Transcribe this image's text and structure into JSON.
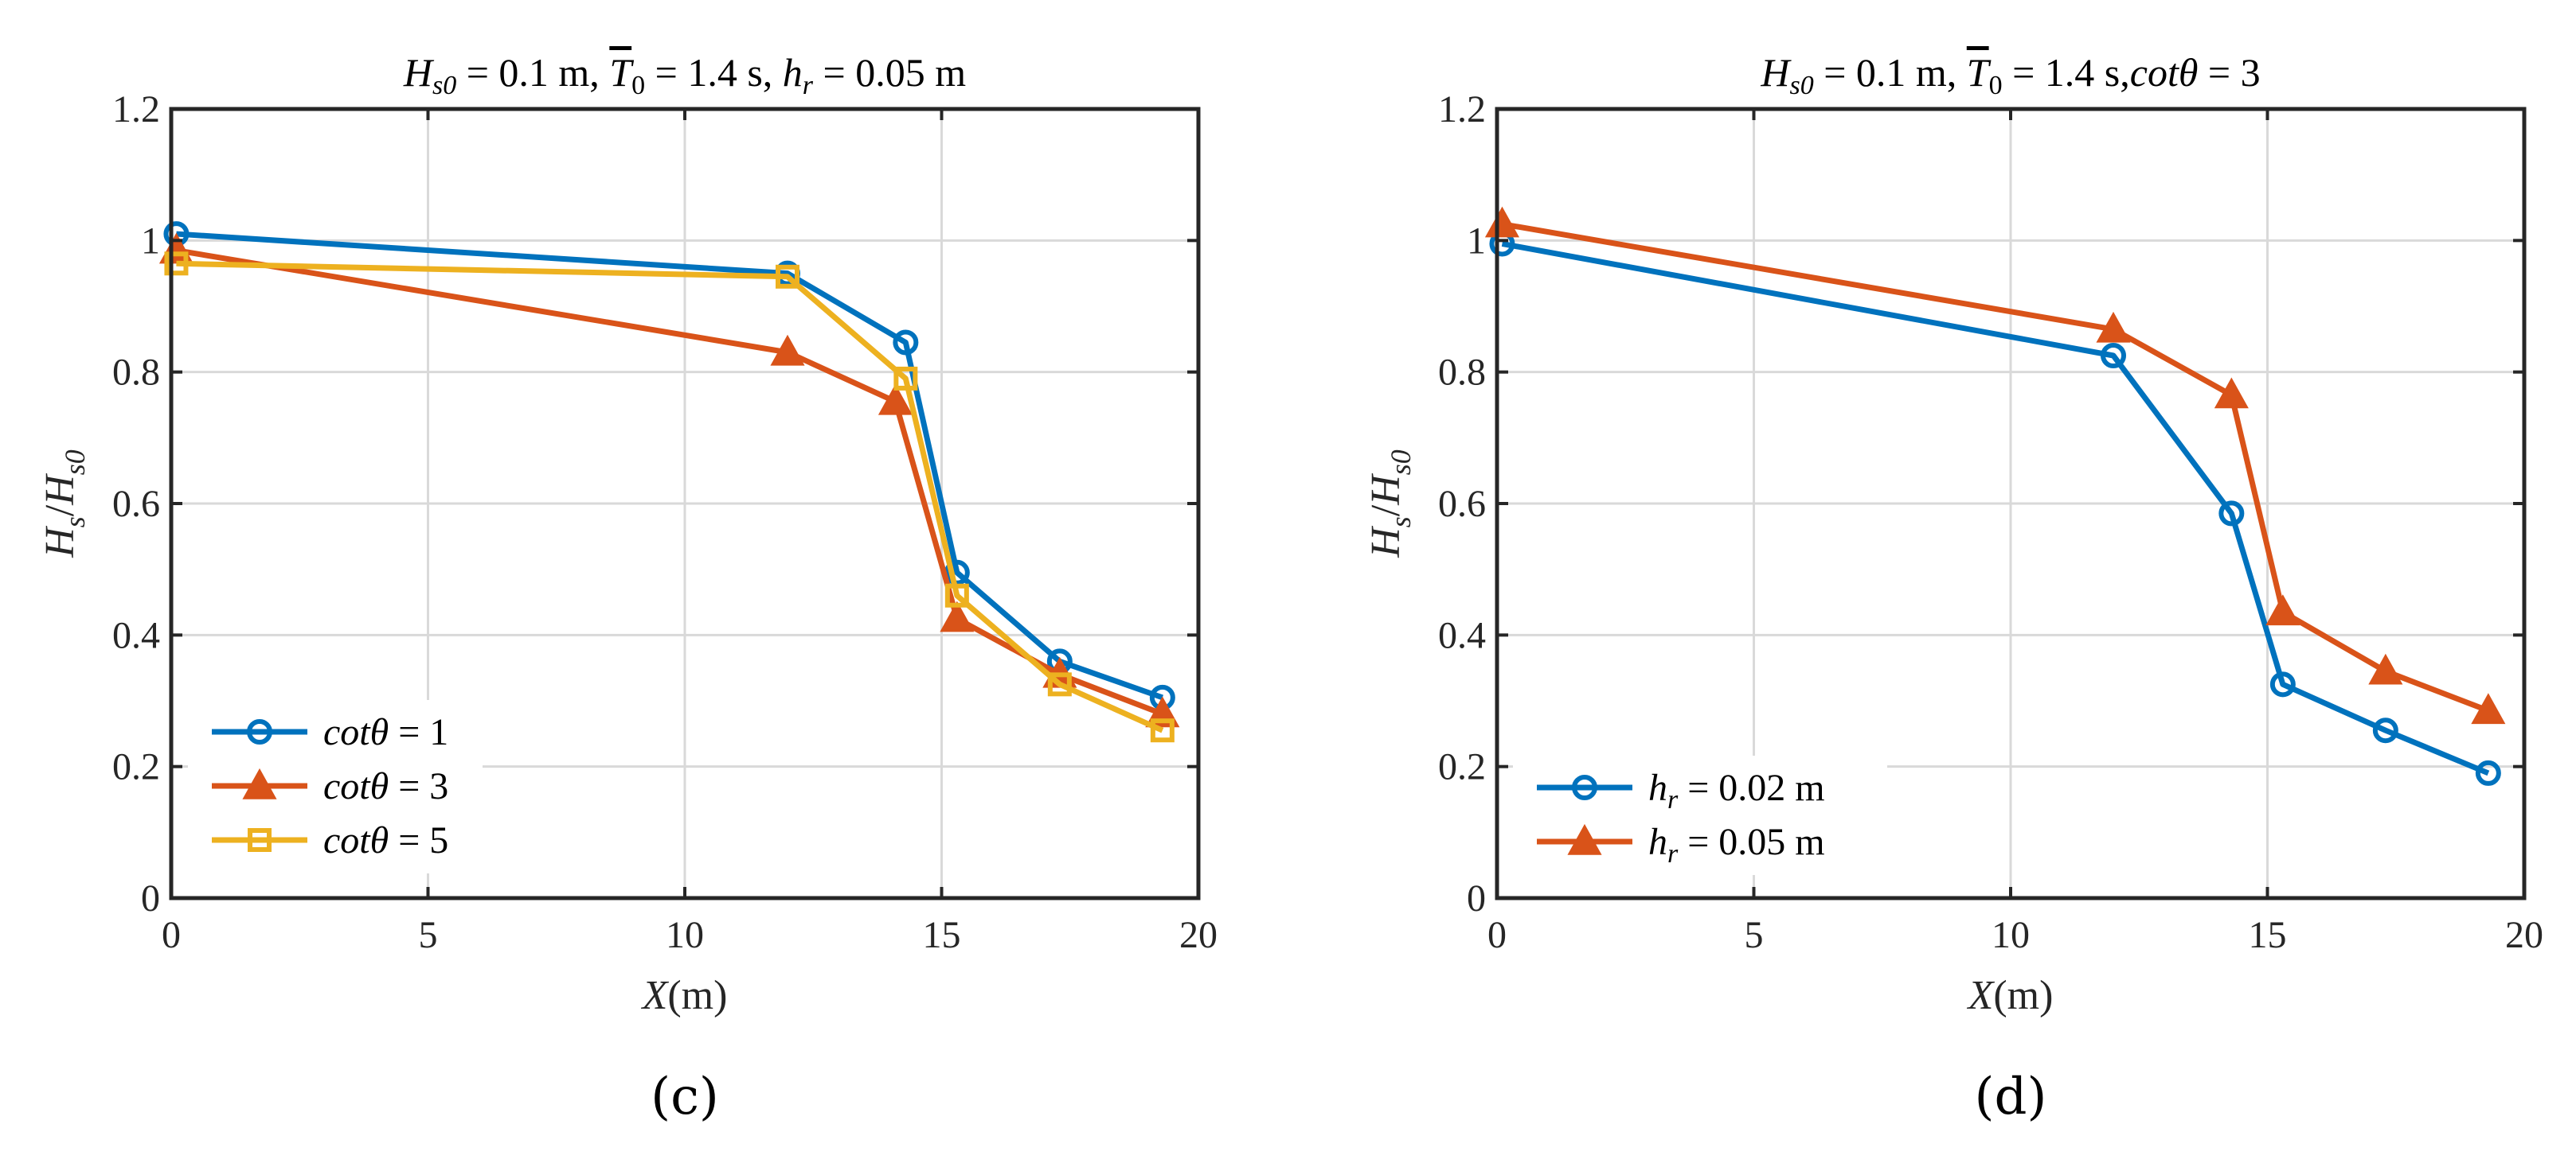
{
  "chart_data": [
    {
      "type": "line",
      "panel_label": "(c)",
      "title": "H_s0 = 0.1 m, T̄_0 = 1.4 s, h_r = 0.05 m",
      "xlabel": "X(m)",
      "ylabel": "H_s/H_s0",
      "xlim": [
        0,
        20
      ],
      "ylim": [
        0,
        1.2
      ],
      "xticks": [
        0,
        5,
        10,
        15,
        20
      ],
      "yticks": [
        0,
        0.2,
        0.4,
        0.6,
        0.8,
        1,
        1.2
      ],
      "xtick_labels": [
        "0",
        "5",
        "10",
        "15",
        "20"
      ],
      "ytick_labels": [
        "0",
        "0.2",
        "0.4",
        "0.6",
        "0.8",
        "1",
        "1.2"
      ],
      "grid": true,
      "legend_location": "bottom-left",
      "series": [
        {
          "name": "cotθ = 1",
          "color": "#0072BD",
          "marker": "circle",
          "x": [
            0.1,
            12,
            14.3,
            15.3,
            17.3,
            19.3
          ],
          "y": [
            1.01,
            0.95,
            0.845,
            0.495,
            0.36,
            0.305
          ]
        },
        {
          "name": "cotθ = 3",
          "color": "#D95319",
          "marker": "triangle",
          "x": [
            0.1,
            12,
            14.1,
            15.3,
            17.3,
            19.3
          ],
          "y": [
            0.985,
            0.83,
            0.755,
            0.425,
            0.34,
            0.28
          ]
        },
        {
          "name": "cotθ = 5",
          "color": "#EDB120",
          "marker": "square",
          "x": [
            0.1,
            12,
            14.3,
            15.3,
            17.3,
            19.3
          ],
          "y": [
            0.965,
            0.945,
            0.79,
            0.46,
            0.325,
            0.255
          ]
        }
      ]
    },
    {
      "type": "line",
      "panel_label": "(d)",
      "title": "H_s0 = 0.1 m, T̄_0 = 1.4 s,cotθ = 3",
      "xlabel": "X(m)",
      "ylabel": "H_s/H_s0",
      "xlim": [
        0,
        20
      ],
      "ylim": [
        0,
        1.2
      ],
      "xticks": [
        0,
        5,
        10,
        15,
        20
      ],
      "yticks": [
        0,
        0.2,
        0.4,
        0.6,
        0.8,
        1,
        1.2
      ],
      "xtick_labels": [
        "0",
        "5",
        "10",
        "15",
        "20"
      ],
      "ytick_labels": [
        "0",
        "0.2",
        "0.4",
        "0.6",
        "0.8",
        "1",
        "1.2"
      ],
      "grid": true,
      "legend_location": "bottom-left",
      "series": [
        {
          "name": "h_r = 0.02 m",
          "color": "#0072BD",
          "marker": "circle",
          "x": [
            0.1,
            12,
            14.3,
            15.3,
            17.3,
            19.3
          ],
          "y": [
            0.995,
            0.825,
            0.585,
            0.325,
            0.255,
            0.19
          ]
        },
        {
          "name": "h_r = 0.05 m",
          "color": "#D95319",
          "marker": "triangle",
          "x": [
            0.1,
            12,
            14.3,
            15.3,
            17.3,
            19.3
          ],
          "y": [
            1.025,
            0.865,
            0.765,
            0.435,
            0.345,
            0.285
          ]
        }
      ]
    }
  ]
}
